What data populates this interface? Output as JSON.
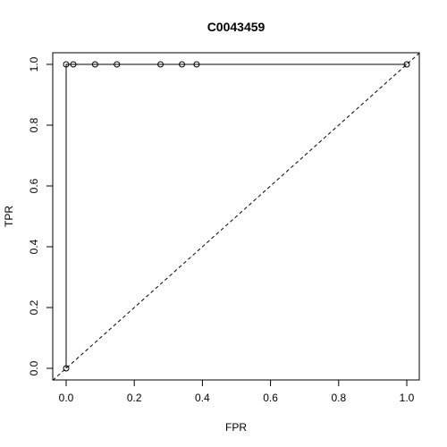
{
  "chart_data": {
    "type": "line",
    "title": "C0043459",
    "xlabel": "FPR",
    "ylabel": "TPR",
    "xlim": [
      0,
      1
    ],
    "ylim": [
      0,
      1
    ],
    "xticks": [
      0.0,
      0.2,
      0.4,
      0.6,
      0.8,
      1.0
    ],
    "xtick_labels": [
      "0.0",
      "0.2",
      "0.4",
      "0.6",
      "0.8",
      "1.0"
    ],
    "yticks": [
      0.0,
      0.2,
      0.4,
      0.6,
      0.8,
      1.0
    ],
    "ytick_labels": [
      "0.0",
      "0.2",
      "0.4",
      "0.6",
      "0.8",
      "1.0"
    ],
    "grid": false,
    "series": [
      {
        "style": "solid-line-with-open-circles",
        "x": [
          0.0,
          0.0,
          0.021,
          0.085,
          0.149,
          0.277,
          0.34,
          0.383,
          1.0
        ],
        "y": [
          0.0,
          1.0,
          1.0,
          1.0,
          1.0,
          1.0,
          1.0,
          1.0,
          1.0
        ]
      }
    ],
    "reference_line": {
      "style": "dashed",
      "x": [
        0,
        1
      ],
      "y": [
        0,
        1
      ]
    },
    "colors": {
      "line": "#000000",
      "background": "#ffffff"
    }
  }
}
